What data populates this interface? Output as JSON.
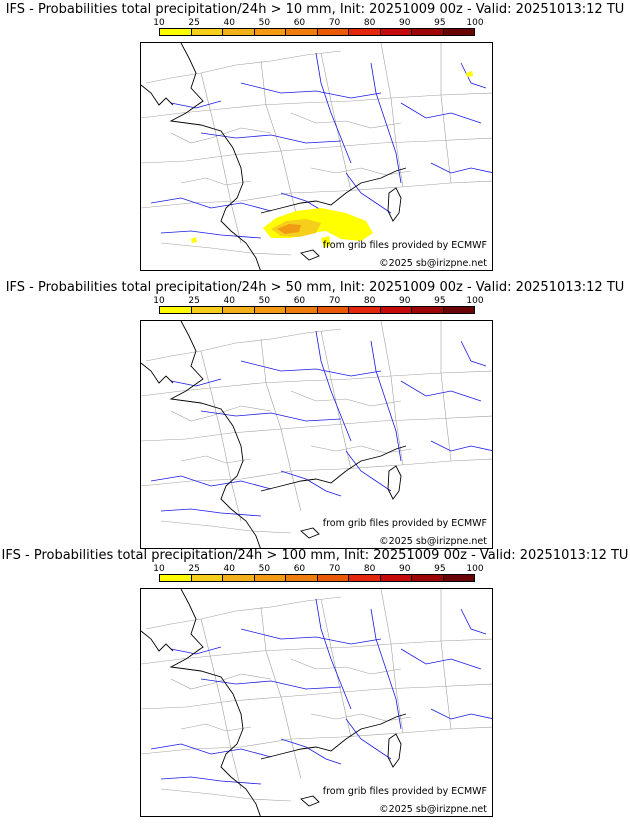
{
  "colorbar": {
    "ticks": [
      "10",
      "25",
      "40",
      "50",
      "60",
      "70",
      "80",
      "90",
      "95",
      "100"
    ],
    "colors": [
      "#ffff00",
      "#f5cf1c",
      "#f2b01b",
      "#f19a12",
      "#ef7d0b",
      "#ea5a06",
      "#e3260e",
      "#c50909",
      "#9b0505",
      "#6a0404"
    ]
  },
  "panels": [
    {
      "title": "IFS - Probabilities total precipitation/24h > 10 mm, Init: 20251009 00z - Valid: 20251013:12 TU",
      "source": "from grib files provided by ECMWF",
      "copyright": "©2025 sb@irizpne.net",
      "has_precip_area": true
    },
    {
      "title": "IFS - Probabilities total precipitation/24h > 50 mm, Init: 20251009 00z - Valid: 20251013:12 TU",
      "source": "from grib files provided by ECMWF",
      "copyright": "©2025 sb@irizpne.net",
      "has_precip_area": false
    },
    {
      "title": "IFS - Probabilities total precipitation/24h > 100 mm, Init: 20251009 00z - Valid: 20251013:12 TU",
      "source": "from grib files provided by ECMWF",
      "copyright": "©2025 sb@irizpne.net",
      "has_precip_area": false
    }
  ],
  "map_colors": {
    "coast": "#000000",
    "rivers": "#1a1ae6",
    "borders": "#a0a0a0",
    "land": "#ffffff"
  }
}
